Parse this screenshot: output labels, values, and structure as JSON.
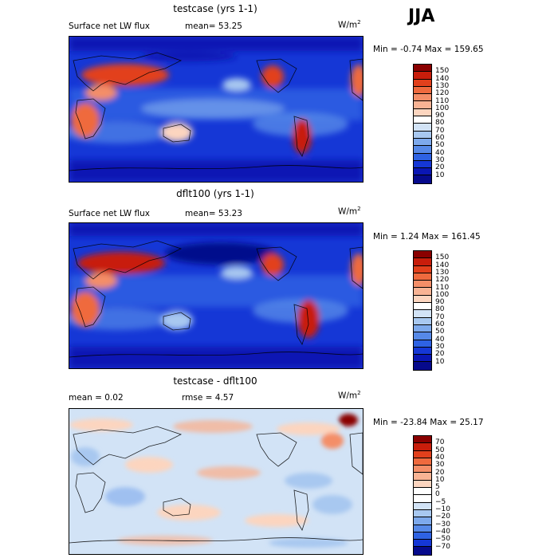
{
  "season": "JJA",
  "panels": [
    {
      "title": "testcase (yrs 1-1)",
      "subtitle_left": "Surface net LW flux",
      "subtitle_mid": "mean=  53.25",
      "units": "W/m",
      "units_sup": "2",
      "minmax": "Min =   -0.74 Max = 159.65",
      "colorbar": {
        "labels": [
          "150",
          "140",
          "130",
          "120",
          "110",
          "100",
          "90",
          "80",
          "70",
          "60",
          "50",
          "40",
          "30",
          "20",
          "10"
        ],
        "colors": [
          "#8a0000",
          "#c81d0b",
          "#e2401c",
          "#ef6a3e",
          "#f48e68",
          "#f8b394",
          "#fcd5bf",
          "#ffffff",
          "#d2e3f6",
          "#a8c8f0",
          "#7da9ec",
          "#5689e8",
          "#2e62e3",
          "#1537d6",
          "#0a16b4",
          "#060a8c"
        ]
      }
    },
    {
      "title": "dflt100 (yrs 1-1)",
      "subtitle_left": "Surface net LW flux",
      "subtitle_mid": "mean=  53.23",
      "units": "W/m",
      "units_sup": "2",
      "minmax": "Min =    1.24 Max = 161.45",
      "colorbar": {
        "labels": [
          "150",
          "140",
          "130",
          "120",
          "110",
          "100",
          "90",
          "80",
          "70",
          "60",
          "50",
          "40",
          "30",
          "20",
          "10"
        ],
        "colors": [
          "#8a0000",
          "#c81d0b",
          "#e2401c",
          "#ef6a3e",
          "#f48e68",
          "#f8b394",
          "#fcd5bf",
          "#ffffff",
          "#d2e3f6",
          "#a8c8f0",
          "#7da9ec",
          "#5689e8",
          "#2e62e3",
          "#1537d6",
          "#0a16b4",
          "#060a8c"
        ]
      }
    },
    {
      "title": "testcase - dflt100",
      "subtitle_left": "mean =    0.02",
      "subtitle_mid": "rmse =    4.57",
      "units": "W/m",
      "units_sup": "2",
      "minmax": "Min = -23.84 Max =  25.17",
      "colorbar": {
        "labels": [
          "70",
          "50",
          "40",
          "30",
          "20",
          "10",
          "5",
          "0",
          "−5",
          "−10",
          "−20",
          "−30",
          "−40",
          "−50",
          "−70"
        ],
        "colors": [
          "#8a0000",
          "#c81d0b",
          "#e2401c",
          "#ef6a3e",
          "#f48e68",
          "#f8b394",
          "#fcd5bf",
          "#ffffff",
          "#ffffff",
          "#d2e3f6",
          "#a8c8f0",
          "#7da9ec",
          "#5689e8",
          "#2e62e3",
          "#1537d6",
          "#060a8c"
        ]
      }
    }
  ]
}
